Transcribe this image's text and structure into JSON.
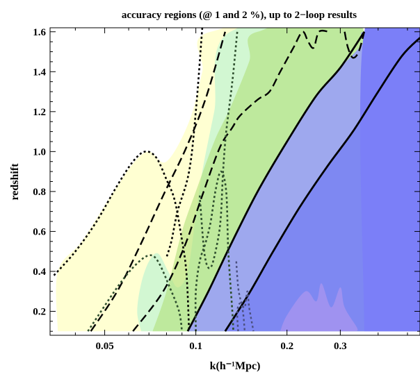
{
  "chart_data": {
    "type": "area",
    "title": "accuracy regions (@ 1 and 2 %), up to 2−loop results",
    "xlabel": "k(h⁻¹Mpc)",
    "ylabel": "redshift",
    "x_scale": "log",
    "xlim": [
      0.033,
      0.55
    ],
    "ylim": [
      0.08,
      1.62
    ],
    "x_ticks": [
      {
        "value": 0.05,
        "label": "0.05"
      },
      {
        "value": 0.1,
        "label": "0.1"
      },
      {
        "value": 0.2,
        "label": "0.2"
      },
      {
        "value": 0.3,
        "label": "0.3"
      }
    ],
    "y_ticks": [
      {
        "value": 0.2,
        "label": "0.2"
      },
      {
        "value": 0.4,
        "label": "0.4"
      },
      {
        "value": 0.6,
        "label": "0.6"
      },
      {
        "value": 0.8,
        "label": "0.8"
      },
      {
        "value": 1.0,
        "label": "1.0"
      },
      {
        "value": 1.2,
        "label": "1.2"
      },
      {
        "value": 1.4,
        "label": "1.4"
      },
      {
        "value": 1.6,
        "label": "1.6"
      }
    ],
    "regions": [
      {
        "color": "#ffffd2",
        "points": [
          [
            0.035,
            0.1
          ],
          [
            0.035,
            0.4
          ],
          [
            0.042,
            0.55
          ],
          [
            0.052,
            0.77
          ],
          [
            0.062,
            0.94
          ],
          [
            0.07,
            1.0
          ],
          [
            0.08,
            0.95
          ],
          [
            0.095,
            1.15
          ],
          [
            0.105,
            1.4
          ],
          [
            0.112,
            1.6
          ],
          [
            0.36,
            1.6
          ],
          [
            0.36,
            0.1
          ]
        ]
      },
      {
        "color": "#d2f7d2",
        "points": [
          [
            0.066,
            0.1
          ],
          [
            0.064,
            0.2
          ],
          [
            0.066,
            0.34
          ],
          [
            0.07,
            0.45
          ],
          [
            0.075,
            0.49
          ],
          [
            0.081,
            0.4
          ],
          [
            0.087,
            0.32
          ],
          [
            0.094,
            0.4
          ],
          [
            0.1,
            0.68
          ],
          [
            0.105,
            0.9
          ],
          [
            0.115,
            1.2
          ],
          [
            0.13,
            1.6
          ],
          [
            0.36,
            1.6
          ],
          [
            0.36,
            0.1
          ]
        ]
      },
      {
        "color": "#b0e07a",
        "opacity": 0.6,
        "points": [
          [
            0.072,
            0.1
          ],
          [
            0.08,
            0.3
          ],
          [
            0.09,
            0.6
          ],
          [
            0.1,
            0.8
          ],
          [
            0.115,
            1.05
          ],
          [
            0.13,
            1.22
          ],
          [
            0.15,
            1.45
          ],
          [
            0.16,
            1.6
          ],
          [
            0.36,
            1.6
          ],
          [
            0.36,
            0.1
          ]
        ]
      },
      {
        "color": "#9ea8ee",
        "points": [
          [
            0.094,
            0.1
          ],
          [
            0.11,
            0.3
          ],
          [
            0.13,
            0.53
          ],
          [
            0.16,
            0.8
          ],
          [
            0.2,
            1.05
          ],
          [
            0.25,
            1.28
          ],
          [
            0.3,
            1.42
          ],
          [
            0.36,
            1.55
          ],
          [
            0.36,
            1.6
          ],
          [
            0.55,
            1.6
          ],
          [
            0.55,
            0.1
          ]
        ]
      },
      {
        "color": "#7e88f2",
        "points": [
          [
            0.125,
            0.1
          ],
          [
            0.15,
            0.29
          ],
          [
            0.18,
            0.5
          ],
          [
            0.22,
            0.72
          ],
          [
            0.27,
            0.92
          ],
          [
            0.33,
            1.1
          ],
          [
            0.4,
            1.3
          ],
          [
            0.48,
            1.48
          ],
          [
            0.55,
            1.57
          ],
          [
            0.55,
            0.1
          ]
        ]
      },
      {
        "color": "#b99aee",
        "opacity": 0.55,
        "points": [
          [
            0.19,
            0.1
          ],
          [
            0.2,
            0.18
          ],
          [
            0.23,
            0.3
          ],
          [
            0.25,
            0.25
          ],
          [
            0.26,
            0.34
          ],
          [
            0.28,
            0.22
          ],
          [
            0.3,
            0.32
          ],
          [
            0.31,
            0.22
          ],
          [
            0.34,
            0.12
          ],
          [
            0.34,
            0.1
          ]
        ]
      },
      {
        "color": "#7b7ff8",
        "points": [
          [
            0.36,
            0.1
          ],
          [
            0.36,
            1.6
          ],
          [
            0.55,
            1.6
          ],
          [
            0.55,
            0.1
          ]
        ]
      }
    ],
    "series": [
      {
        "style": "solid",
        "color": "#000000",
        "width": 2.8,
        "points": [
          [
            0.094,
            0.1
          ],
          [
            0.11,
            0.3
          ],
          [
            0.13,
            0.53
          ],
          [
            0.16,
            0.8
          ],
          [
            0.2,
            1.05
          ],
          [
            0.25,
            1.28
          ],
          [
            0.3,
            1.42
          ],
          [
            0.36,
            1.6
          ]
        ]
      },
      {
        "style": "solid",
        "color": "#000000",
        "width": 2.8,
        "points": [
          [
            0.125,
            0.1
          ],
          [
            0.15,
            0.29
          ],
          [
            0.18,
            0.5
          ],
          [
            0.22,
            0.72
          ],
          [
            0.27,
            0.92
          ],
          [
            0.33,
            1.1
          ],
          [
            0.4,
            1.3
          ],
          [
            0.48,
            1.48
          ],
          [
            0.55,
            1.57
          ]
        ]
      },
      {
        "style": "dash",
        "color": "#000000",
        "width": 2.4,
        "points": [
          [
            0.045,
            0.1
          ],
          [
            0.055,
            0.3
          ],
          [
            0.065,
            0.52
          ],
          [
            0.078,
            0.78
          ],
          [
            0.093,
            1.02
          ],
          [
            0.108,
            1.27
          ],
          [
            0.125,
            1.6
          ]
        ]
      },
      {
        "style": "dash",
        "color": "#000000",
        "width": 2.4,
        "points": [
          [
            0.062,
            0.1
          ],
          [
            0.078,
            0.3
          ],
          [
            0.092,
            0.53
          ],
          [
            0.105,
            0.78
          ],
          [
            0.12,
            1.02
          ],
          [
            0.132,
            1.12
          ],
          [
            0.14,
            1.18
          ],
          [
            0.16,
            1.26
          ],
          [
            0.175,
            1.3
          ],
          [
            0.19,
            1.4
          ],
          [
            0.21,
            1.52
          ],
          [
            0.225,
            1.6
          ],
          [
            0.235,
            1.55
          ],
          [
            0.245,
            1.52
          ],
          [
            0.255,
            1.6
          ],
          [
            0.275,
            1.6
          ]
        ]
      },
      {
        "style": "dash",
        "color": "#000000",
        "width": 2.4,
        "points": [
          [
            0.31,
            1.6
          ],
          [
            0.318,
            1.52
          ],
          [
            0.33,
            1.47
          ],
          [
            0.345,
            1.5
          ],
          [
            0.36,
            1.6
          ]
        ]
      },
      {
        "style": "dot",
        "color": "#000000",
        "width": 2.6,
        "points": [
          [
            0.034,
            0.38
          ],
          [
            0.04,
            0.5
          ],
          [
            0.047,
            0.65
          ],
          [
            0.055,
            0.83
          ],
          [
            0.062,
            0.95
          ],
          [
            0.068,
            1.0
          ],
          [
            0.074,
            0.97
          ],
          [
            0.08,
            0.86
          ],
          [
            0.085,
            0.76
          ],
          [
            0.089,
            0.6
          ],
          [
            0.093,
            0.4
          ],
          [
            0.095,
            0.1
          ]
        ]
      },
      {
        "style": "dot",
        "color": "#000000",
        "width": 2.6,
        "points": [
          [
            0.105,
            1.62
          ],
          [
            0.1,
            1.2
          ],
          [
            0.095,
            0.9
          ],
          [
            0.087,
            0.7
          ],
          [
            0.083,
            0.55
          ],
          [
            0.08,
            0.47
          ]
        ]
      },
      {
        "style": "dot",
        "color": "#2f4f2f",
        "width": 2.6,
        "points": [
          [
            0.044,
            0.1
          ],
          [
            0.055,
            0.32
          ],
          [
            0.063,
            0.43
          ],
          [
            0.07,
            0.48
          ],
          [
            0.075,
            0.45
          ],
          [
            0.082,
            0.32
          ],
          [
            0.088,
            0.2
          ],
          [
            0.09,
            0.1
          ]
        ]
      },
      {
        "style": "dot",
        "color": "#2f4f2f",
        "width": 2.6,
        "points": [
          [
            0.1,
            0.1
          ],
          [
            0.1,
            0.3
          ],
          [
            0.103,
            0.45
          ],
          [
            0.108,
            0.55
          ],
          [
            0.112,
            0.65
          ],
          [
            0.116,
            0.8
          ],
          [
            0.121,
            0.9
          ],
          [
            0.126,
            0.8
          ],
          [
            0.128,
            0.5
          ],
          [
            0.132,
            0.2
          ],
          [
            0.133,
            0.1
          ]
        ]
      },
      {
        "style": "dot",
        "color": "#2f4f2f",
        "width": 2.6,
        "points": [
          [
            0.103,
            0.78
          ],
          [
            0.107,
            0.48
          ],
          [
            0.112,
            0.42
          ],
          [
            0.118,
            0.55
          ],
          [
            0.121,
            0.68
          ],
          [
            0.123,
            0.9
          ],
          [
            0.126,
            1.1
          ],
          [
            0.132,
            1.35
          ],
          [
            0.137,
            1.6
          ]
        ]
      },
      {
        "style": "dot",
        "color": "#4b5080",
        "width": 2.4,
        "points": [
          [
            0.138,
            0.1
          ],
          [
            0.137,
            0.2
          ],
          [
            0.14,
            0.24
          ],
          [
            0.143,
            0.2
          ],
          [
            0.145,
            0.1
          ]
        ]
      },
      {
        "style": "dot",
        "color": "#4b5080",
        "width": 2.4,
        "points": [
          [
            0.136,
            0.45
          ],
          [
            0.138,
            0.32
          ],
          [
            0.141,
            0.25
          ],
          [
            0.145,
            0.22
          ],
          [
            0.148,
            0.3
          ],
          [
            0.15,
            0.22
          ],
          [
            0.155,
            0.1
          ]
        ]
      }
    ]
  }
}
